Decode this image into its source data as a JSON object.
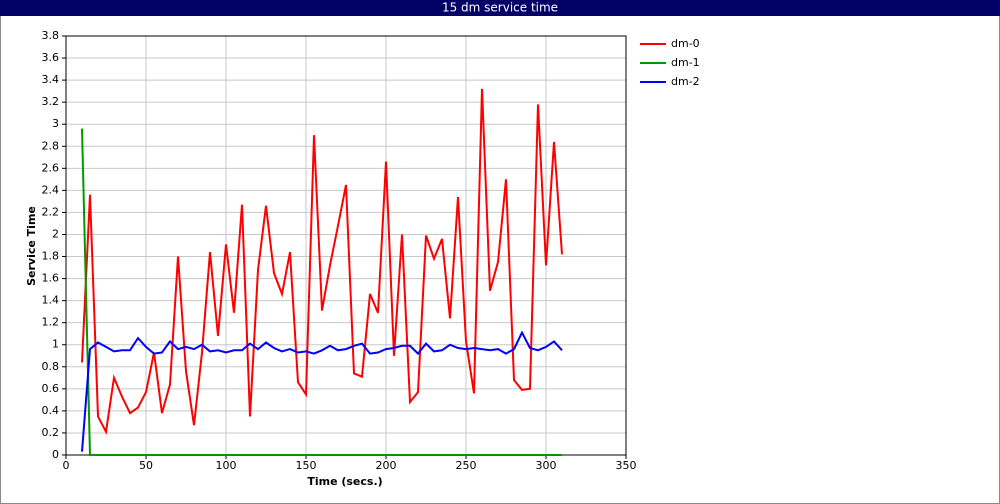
{
  "chart_data": {
    "type": "line",
    "title": "15 dm service time",
    "x_label": "Time (secs.)",
    "y_label": "Service Time",
    "x": [
      10,
      15,
      20,
      25,
      30,
      35,
      40,
      45,
      50,
      55,
      60,
      65,
      70,
      75,
      80,
      85,
      90,
      95,
      100,
      105,
      110,
      115,
      120,
      125,
      130,
      135,
      140,
      145,
      150,
      155,
      160,
      165,
      170,
      175,
      180,
      185,
      190,
      195,
      200,
      205,
      210,
      215,
      220,
      225,
      230,
      235,
      240,
      245,
      250,
      255,
      260,
      265,
      270,
      275,
      280,
      285,
      290,
      295,
      300,
      305,
      310
    ],
    "series": [
      {
        "name": "dm-0",
        "color": "#ff0000",
        "values": [
          0.84,
          2.36,
          0.35,
          0.21,
          0.7,
          0.53,
          0.38,
          0.43,
          0.57,
          0.93,
          0.38,
          0.64,
          1.8,
          0.76,
          0.27,
          0.93,
          1.84,
          1.08,
          1.91,
          1.29,
          2.27,
          0.35,
          1.68,
          2.26,
          1.65,
          1.46,
          1.84,
          0.66,
          0.55,
          2.9,
          1.31,
          1.72,
          2.08,
          2.45,
          0.74,
          0.71,
          1.46,
          1.29,
          2.66,
          0.9,
          2.0,
          0.48,
          0.57,
          1.99,
          1.78,
          1.96,
          1.24,
          2.34,
          1.03,
          0.56,
          3.32,
          1.49,
          1.75,
          2.5,
          0.68,
          0.59,
          0.6,
          3.18,
          1.72,
          2.84,
          1.82
        ]
      },
      {
        "name": "dm-1",
        "color": "#009900",
        "values": [
          2.96,
          0,
          0,
          0,
          0,
          0,
          0,
          0,
          0,
          0,
          0,
          0,
          0,
          0,
          0,
          0,
          0,
          0,
          0,
          0,
          0,
          0,
          0,
          0,
          0,
          0,
          0,
          0,
          0,
          0,
          0,
          0,
          0,
          0,
          0,
          0,
          0,
          0,
          0,
          0,
          0,
          0,
          0,
          0,
          0,
          0,
          0,
          0,
          0,
          0,
          0,
          0,
          0,
          0,
          0,
          0,
          0,
          0,
          0,
          0,
          0
        ]
      },
      {
        "name": "dm-2",
        "color": "#0000ff",
        "values": [
          0.03,
          0.96,
          1.02,
          0.98,
          0.94,
          0.95,
          0.95,
          1.06,
          0.98,
          0.92,
          0.93,
          1.03,
          0.96,
          0.98,
          0.96,
          1.0,
          0.94,
          0.95,
          0.93,
          0.95,
          0.95,
          1.01,
          0.96,
          1.02,
          0.97,
          0.94,
          0.96,
          0.93,
          0.94,
          0.92,
          0.95,
          0.99,
          0.95,
          0.96,
          0.99,
          1.01,
          0.92,
          0.93,
          0.96,
          0.97,
          0.99,
          0.99,
          0.92,
          1.01,
          0.94,
          0.95,
          1.0,
          0.97,
          0.96,
          0.97,
          0.96,
          0.95,
          0.96,
          0.92,
          0.96,
          1.11,
          0.97,
          0.95,
          0.98,
          1.03,
          0.95
        ]
      }
    ],
    "xlim": [
      0,
      350
    ],
    "xticks": [
      0,
      50,
      100,
      150,
      200,
      250,
      300,
      350
    ],
    "ylim": [
      0,
      3.8
    ],
    "yticks": [
      0,
      0.2,
      0.4,
      0.6,
      0.8,
      1,
      1.2,
      1.4,
      1.6,
      1.8,
      2,
      2.2,
      2.4,
      2.6,
      2.8,
      3,
      3.2,
      3.4,
      3.6,
      3.8
    ],
    "grid": true,
    "legend": "right"
  }
}
